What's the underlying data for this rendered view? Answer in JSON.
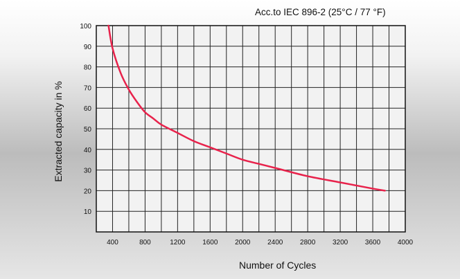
{
  "chart_data": {
    "type": "line",
    "title": "",
    "subtitle": "Acc.to IEC 896-2 (25°C / 77 °F)",
    "xlabel": "Number of Cycles",
    "ylabel": "Extracted capacity in %",
    "xlim": [
      200,
      4000
    ],
    "ylim": [
      0,
      100
    ],
    "xticks": [
      400,
      800,
      1200,
      1600,
      2000,
      2400,
      2800,
      3200,
      3600,
      4000
    ],
    "yticks": [
      10,
      20,
      30,
      40,
      50,
      60,
      70,
      80,
      90,
      100
    ],
    "grid": true,
    "line_color": "#e8224b",
    "series": [
      {
        "name": "",
        "x": [
          350,
          400,
          500,
          600,
          700,
          800,
          900,
          1000,
          1200,
          1400,
          1600,
          1800,
          2000,
          2200,
          2400,
          2800,
          3200,
          3600,
          3750
        ],
        "y": [
          100,
          89,
          77,
          69,
          63,
          58,
          55,
          52,
          48,
          44,
          41,
          38,
          35,
          33,
          31,
          27,
          24,
          21,
          20
        ]
      }
    ]
  }
}
